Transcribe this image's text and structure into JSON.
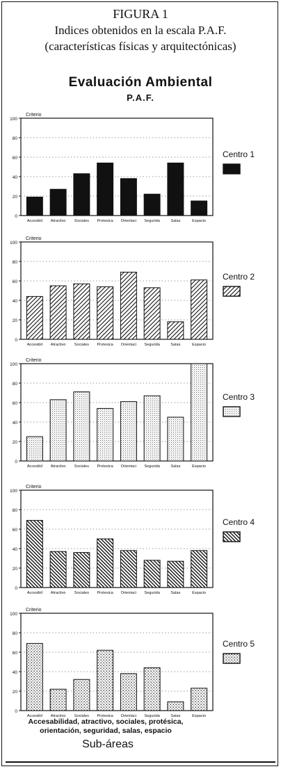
{
  "figure": {
    "title": "FIGURA 1",
    "subtitle_line1": "Indices obtenidos en la escala P.A.F.",
    "subtitle_line2": "(características físicas y arquitectónicas)"
  },
  "header": {
    "title": "Evaluación Ambiental",
    "subtitle": "P.A.F."
  },
  "footer": {
    "note_line1": "Accesabilidad, atractivo, sociales, protésica,",
    "note_line2": "orientación, seguridad, salas, espacio",
    "xlabel": "Sub-áreas"
  },
  "chart_data": [
    {
      "type": "bar",
      "name": "Centro 1",
      "ylabel": "Criterio",
      "ylim": [
        0,
        100
      ],
      "yticks": [
        0,
        20,
        40,
        60,
        80,
        100
      ],
      "grid": true,
      "pattern": "solid",
      "categories": [
        "Accesibil",
        "Atractivo",
        "Sociales",
        "Protesica",
        "Orientaci",
        "Segurida",
        "Salas",
        "Espacio"
      ],
      "values": [
        19,
        27,
        43,
        54,
        38,
        22,
        54,
        15
      ]
    },
    {
      "type": "bar",
      "name": "Centro 2",
      "ylabel": "Criterio",
      "ylim": [
        0,
        100
      ],
      "yticks": [
        0,
        20,
        40,
        60,
        80,
        100
      ],
      "grid": true,
      "pattern": "diagonal",
      "categories": [
        "Accesibil",
        "Atractivo",
        "Sociales",
        "Protesica",
        "Orientaci",
        "Segurida",
        "Salas",
        "Espacio"
      ],
      "values": [
        44,
        55,
        57,
        54,
        69,
        53,
        18,
        61
      ]
    },
    {
      "type": "bar",
      "name": "Centro 3",
      "ylabel": "Criterio",
      "ylim": [
        0,
        100
      ],
      "yticks": [
        0,
        20,
        40,
        60,
        80,
        100
      ],
      "grid": true,
      "pattern": "dots",
      "categories": [
        "Accesibil",
        "Atractivo",
        "Sociales",
        "Protesica",
        "Orientaci",
        "Segurida",
        "Salas",
        "Espacio"
      ],
      "values": [
        25,
        63,
        71,
        54,
        61,
        67,
        45,
        100
      ]
    },
    {
      "type": "bar",
      "name": "Centro 4",
      "ylabel": "Criterio",
      "ylim": [
        0,
        100
      ],
      "yticks": [
        0,
        20,
        40,
        60,
        80,
        100
      ],
      "grid": true,
      "pattern": "backslash",
      "categories": [
        "Accesibil",
        "Atractivo",
        "Sociales",
        "Protesica",
        "Orientaci",
        "Segurida",
        "Salas",
        "Espacio"
      ],
      "values": [
        69,
        37,
        36,
        50,
        38,
        28,
        27,
        38
      ]
    },
    {
      "type": "bar",
      "name": "Centro 5",
      "ylabel": "Criterio",
      "ylim": [
        0,
        100
      ],
      "yticks": [
        0,
        20,
        40,
        60,
        80,
        100
      ],
      "grid": true,
      "pattern": "sparse-dots",
      "categories": [
        "Accesibil",
        "Atractivo",
        "Sociales",
        "Protesica",
        "Orientaci",
        "Segurida",
        "Salas",
        "Espacio"
      ],
      "values": [
        69,
        22,
        32,
        62,
        38,
        44,
        9,
        23
      ]
    }
  ]
}
